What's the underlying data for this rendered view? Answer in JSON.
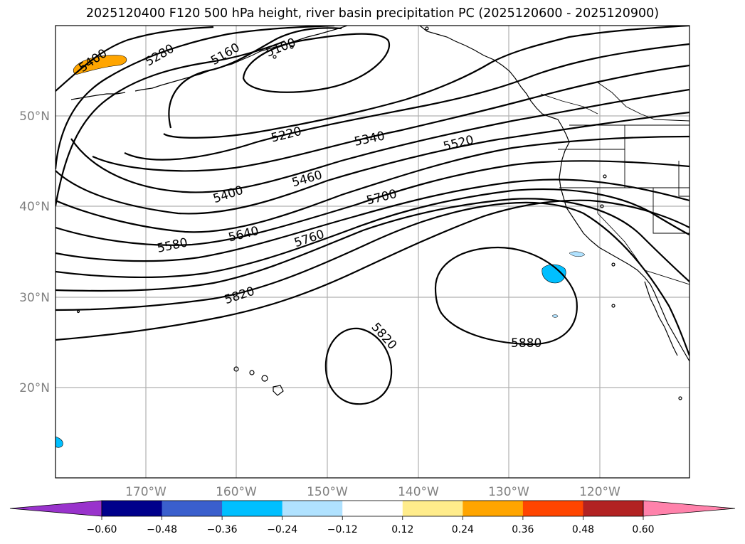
{
  "title": "2025120400 F120 500 hPa height, river basin precipitation PC (2025120600 - 2025120900)",
  "lat_labels": [
    "50°N",
    "40°N",
    "30°N",
    "20°N"
  ],
  "lon_labels": [
    "170°W",
    "160°W",
    "150°W",
    "140°W",
    "130°W",
    "120°W"
  ],
  "contour_labels": [
    "5400",
    "5280",
    "5160",
    "5100",
    "5220",
    "5340",
    "5520",
    "5460",
    "5400",
    "5700",
    "5580",
    "5640",
    "5760",
    "5820",
    "5820",
    "5880"
  ],
  "colorbar": {
    "colors": [
      "#9933cc",
      "#00008b",
      "#3a5fcd",
      "#00bfff",
      "#b0e2ff",
      "#ffffff",
      "#ffec8b",
      "#ffa500",
      "#ff4500",
      "#b22222",
      "#ff82ab"
    ],
    "tick_labels": [
      "−0.60",
      "−0.48",
      "−0.36",
      "−0.24",
      "−0.12",
      "0.12",
      "0.24",
      "0.36",
      "0.48",
      "0.60"
    ]
  },
  "precip_colors": {
    "positive_patch": "#ffa500",
    "negative_patch": "#00bfff",
    "light_patch": "#b0e2ff"
  }
}
